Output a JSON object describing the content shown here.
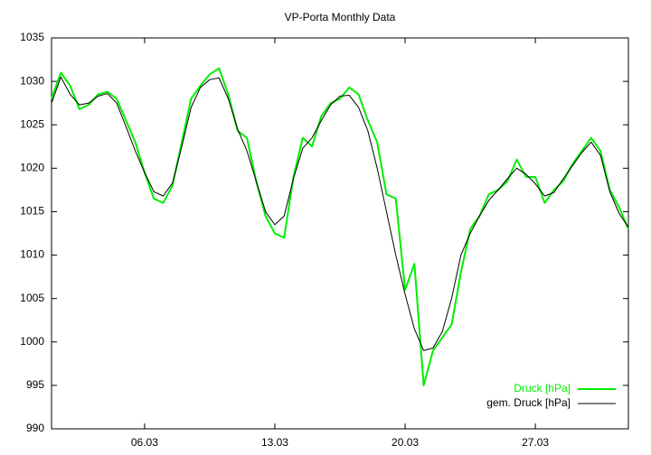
{
  "chart_data": {
    "type": "line",
    "title": "VP-Porta Monthly Data",
    "x": [
      1,
      1.5,
      2,
      2.5,
      3,
      3.5,
      4,
      4.5,
      5,
      5.5,
      6,
      6.5,
      7,
      7.5,
      8,
      8.5,
      9,
      9.5,
      10,
      10.5,
      11,
      11.5,
      12,
      12.5,
      13,
      13.5,
      14,
      14.5,
      15,
      15.5,
      16,
      16.5,
      17,
      17.5,
      18,
      18.5,
      19,
      19.5,
      20,
      20.5,
      21,
      21.5,
      22,
      22.5,
      23,
      23.5,
      24,
      24.5,
      25,
      25.5,
      26,
      26.5,
      27,
      27.5,
      28,
      28.5,
      29,
      29.5,
      30,
      30.5,
      31,
      31.5,
      32
    ],
    "series": [
      {
        "name": "Druck [hPa]",
        "color": "#00ee00",
        "width": 2,
        "values": [
          1028,
          1031,
          1029.5,
          1026.8,
          1027.3,
          1028.5,
          1028.8,
          1028,
          1025.5,
          1023,
          1019.5,
          1016.5,
          1016,
          1018,
          1023,
          1028,
          1029.5,
          1030.8,
          1031.5,
          1028.5,
          1024.3,
          1023.5,
          1018.5,
          1014.5,
          1012.5,
          1012,
          1019,
          1023.5,
          1022.5,
          1026,
          1027.5,
          1028,
          1029.3,
          1028.5,
          1025.5,
          1023,
          1017,
          1016.5,
          1006,
          1009,
          995,
          999,
          1000.5,
          1002,
          1008,
          1013,
          1014.5,
          1017,
          1017.5,
          1018.5,
          1021,
          1019,
          1019,
          1016,
          1017.5,
          1018.5,
          1020.5,
          1022,
          1023.5,
          1022,
          1017.5,
          1015.5,
          1013
        ]
      },
      {
        "name": "gem. Druck [hPa]",
        "color": "#000000",
        "width": 1,
        "values": [
          1027.5,
          1030.5,
          1028.5,
          1027.3,
          1027.5,
          1028.3,
          1028.6,
          1027.5,
          1024.8,
          1022,
          1019.5,
          1017.3,
          1016.8,
          1018.3,
          1022.5,
          1027,
          1029.3,
          1030.2,
          1030.4,
          1028,
          1024.5,
          1022,
          1018.5,
          1015,
          1013.5,
          1014.5,
          1018.8,
          1022.3,
          1023.5,
          1025.5,
          1027.3,
          1028.3,
          1028.4,
          1027,
          1024.3,
          1020,
          1015,
          1010,
          1005.5,
          1001.5,
          999,
          999.3,
          1001.2,
          1005,
          1010,
          1012.5,
          1014.5,
          1016.3,
          1017.5,
          1018.8,
          1020,
          1019.3,
          1018.2,
          1016.8,
          1017.2,
          1018.8,
          1020.3,
          1021.8,
          1023,
          1021.5,
          1017.3,
          1014.8,
          1013.2
        ]
      }
    ],
    "xlim": [
      1,
      32
    ],
    "xticks": [
      {
        "value": 6,
        "label": "06.03"
      },
      {
        "value": 13,
        "label": "13.03"
      },
      {
        "value": 20,
        "label": "20.03"
      },
      {
        "value": 27,
        "label": "27.03"
      }
    ],
    "ylim": [
      990,
      1035
    ],
    "yticks": [
      990,
      995,
      1000,
      1005,
      1010,
      1015,
      1020,
      1025,
      1030,
      1035
    ],
    "grid": false,
    "legend": "bottom-right"
  }
}
